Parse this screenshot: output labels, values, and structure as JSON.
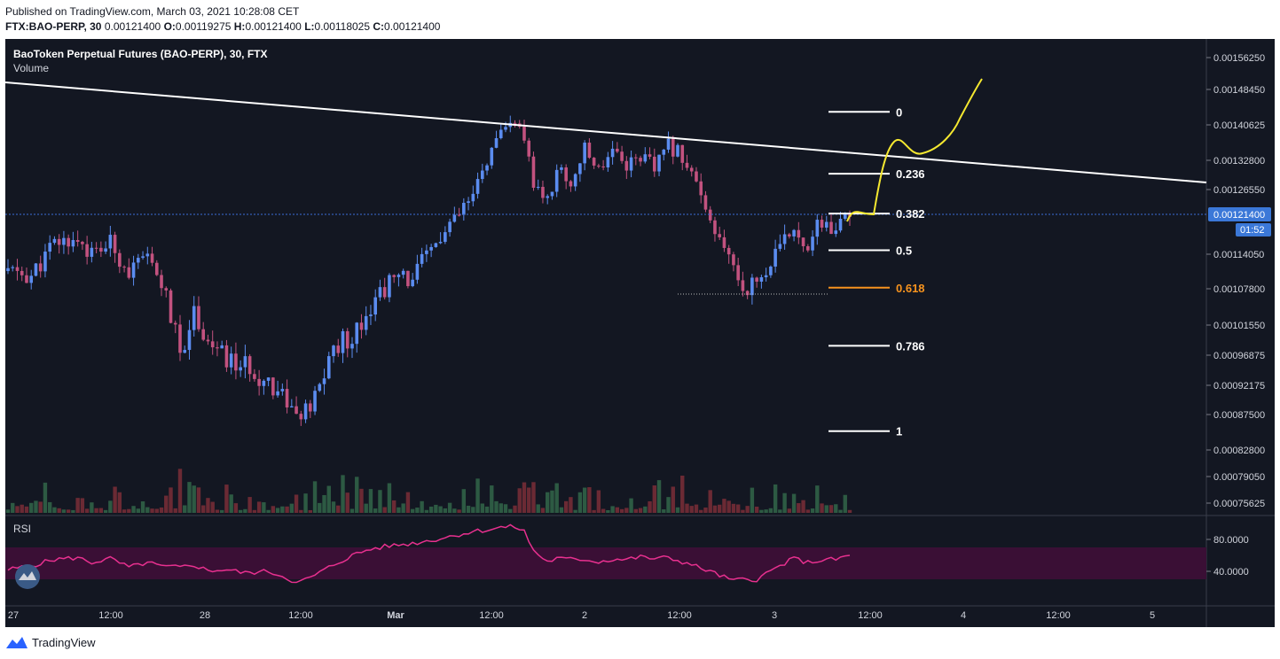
{
  "header": {
    "published": "Published on TradingView.com, March 03, 2021 10:28:08 CET",
    "symbol_line": {
      "symbol": "FTX:BAO-PERP, 30",
      "price": "0.00121400",
      "o_label": "O:",
      "o": "0.00119275",
      "h_label": "H:",
      "h": "0.00121400",
      "l_label": "L:",
      "l": "0.00118025",
      "c_label": "C:",
      "c": "0.00121400"
    }
  },
  "legend": {
    "title": "BaoToken Perpetual Futures (BAO-PERP), 30, FTX",
    "volume_label": "Volume",
    "rsi_label": "RSI"
  },
  "colors": {
    "background": "#131722",
    "up": "#5b8cf0",
    "down": "#c2527f",
    "vol_up": "#2d5a43",
    "vol_down": "#6b2a34",
    "rsi_line": "#e8308f",
    "rsi_band": "#3a0f35",
    "fib": "#ffffff",
    "fib_golden": "#f7931e",
    "projection": "#f5e830",
    "trendline": "#ffffff",
    "price_line": "#3b6dd8",
    "last_price_bg": "#3b78d8"
  },
  "chart_data": {
    "type": "candlestick",
    "title": "BaoToken Perpetual Futures (BAO-PERP), 30, FTX",
    "price_axis_ticks": [
      "0.00156250",
      "0.00148450",
      "0.00140625",
      "0.00132800",
      "0.00126550",
      "0.00121400",
      "0.00114050",
      "0.00107800",
      "0.00101550",
      "0.00096875",
      "0.00092175",
      "0.00087500",
      "0.00082800",
      "0.00079050",
      "0.00075625"
    ],
    "last_price": "0.00121400",
    "countdown": "01:52",
    "time_axis_ticks": [
      "27",
      "12:00",
      "28",
      "12:00",
      "Mar",
      "12:00",
      "2",
      "12:00",
      "3",
      "12:00",
      "4",
      "12:00",
      "5"
    ],
    "rsi_axis_ticks": [
      "80.0000",
      "40.0000"
    ],
    "rsi_band": [
      30,
      70
    ],
    "fib_levels": [
      {
        "label": "0",
        "price": 0.001435
      },
      {
        "label": "0.236",
        "price": 0.0012994
      },
      {
        "label": "0.382",
        "price": 0.0012155
      },
      {
        "label": "0.5",
        "price": 0.0011478
      },
      {
        "label": "0.618",
        "price": 0.00108
      },
      {
        "label": "0.786",
        "price": 0.0009834
      },
      {
        "label": "1",
        "price": 0.000853
      }
    ],
    "price_path": [
      [
        0,
        0.00111
      ],
      [
        5,
        0.0011
      ],
      [
        10,
        0.00116
      ],
      [
        15,
        0.00117
      ],
      [
        18,
        0.00114
      ],
      [
        22,
        0.00116
      ],
      [
        26,
        0.00111
      ],
      [
        30,
        0.00113
      ],
      [
        33,
        0.00109
      ],
      [
        37,
        0.00097
      ],
      [
        40,
        0.00104
      ],
      [
        43,
        0.00099
      ],
      [
        47,
        0.00096
      ],
      [
        51,
        0.00095
      ],
      [
        56,
        0.00093
      ],
      [
        60,
        0.0009
      ],
      [
        62,
        0.00087
      ],
      [
        65,
        0.00088
      ],
      [
        70,
        0.00098
      ],
      [
        74,
        0.001
      ],
      [
        78,
        0.00105
      ],
      [
        82,
        0.00109
      ],
      [
        87,
        0.0011
      ],
      [
        92,
        0.00116
      ],
      [
        96,
        0.0012
      ],
      [
        100,
        0.00125
      ],
      [
        103,
        0.00133
      ],
      [
        106,
        0.00138
      ],
      [
        109,
        0.00142
      ],
      [
        111,
        0.00136
      ],
      [
        113,
        0.00128
      ],
      [
        116,
        0.00124
      ],
      [
        118,
        0.00131
      ],
      [
        121,
        0.00128
      ],
      [
        124,
        0.00135
      ],
      [
        127,
        0.00131
      ],
      [
        130,
        0.00136
      ],
      [
        133,
        0.00132
      ],
      [
        136,
        0.00134
      ],
      [
        139,
        0.00131
      ],
      [
        142,
        0.00136
      ],
      [
        145,
        0.00134
      ],
      [
        148,
        0.00128
      ],
      [
        150,
        0.00121
      ],
      [
        153,
        0.00116
      ],
      [
        156,
        0.00112
      ],
      [
        158,
        0.00108
      ],
      [
        161,
        0.00109
      ],
      [
        163,
        0.00111
      ],
      [
        166,
        0.00115
      ],
      [
        169,
        0.00119
      ],
      [
        172,
        0.00116
      ],
      [
        175,
        0.0012
      ],
      [
        178,
        0.00118
      ],
      [
        181,
        0.00121
      ]
    ],
    "rsi_path": [
      [
        0,
        42
      ],
      [
        5,
        47
      ],
      [
        10,
        55
      ],
      [
        15,
        57
      ],
      [
        18,
        51
      ],
      [
        22,
        56
      ],
      [
        26,
        45
      ],
      [
        30,
        51
      ],
      [
        33,
        46
      ],
      [
        37,
        45
      ],
      [
        40,
        48
      ],
      [
        43,
        41
      ],
      [
        47,
        42
      ],
      [
        51,
        38
      ],
      [
        56,
        40
      ],
      [
        60,
        32
      ],
      [
        62,
        25
      ],
      [
        65,
        32
      ],
      [
        70,
        48
      ],
      [
        74,
        60
      ],
      [
        78,
        68
      ],
      [
        82,
        72
      ],
      [
        87,
        75
      ],
      [
        92,
        80
      ],
      [
        96,
        85
      ],
      [
        100,
        90
      ],
      [
        103,
        92
      ],
      [
        106,
        95
      ],
      [
        109,
        96
      ],
      [
        111,
        90
      ],
      [
        113,
        66
      ],
      [
        116,
        52
      ],
      [
        118,
        56
      ],
      [
        121,
        55
      ],
      [
        124,
        55
      ],
      [
        127,
        52
      ],
      [
        130,
        55
      ],
      [
        133,
        55
      ],
      [
        136,
        58
      ],
      [
        139,
        56
      ],
      [
        142,
        57
      ],
      [
        145,
        52
      ],
      [
        148,
        46
      ],
      [
        150,
        42
      ],
      [
        153,
        35
      ],
      [
        156,
        28
      ],
      [
        158,
        30
      ],
      [
        161,
        30
      ],
      [
        163,
        37
      ],
      [
        166,
        47
      ],
      [
        169,
        56
      ],
      [
        172,
        51
      ],
      [
        175,
        54
      ],
      [
        178,
        55
      ],
      [
        181,
        60
      ]
    ]
  }
}
